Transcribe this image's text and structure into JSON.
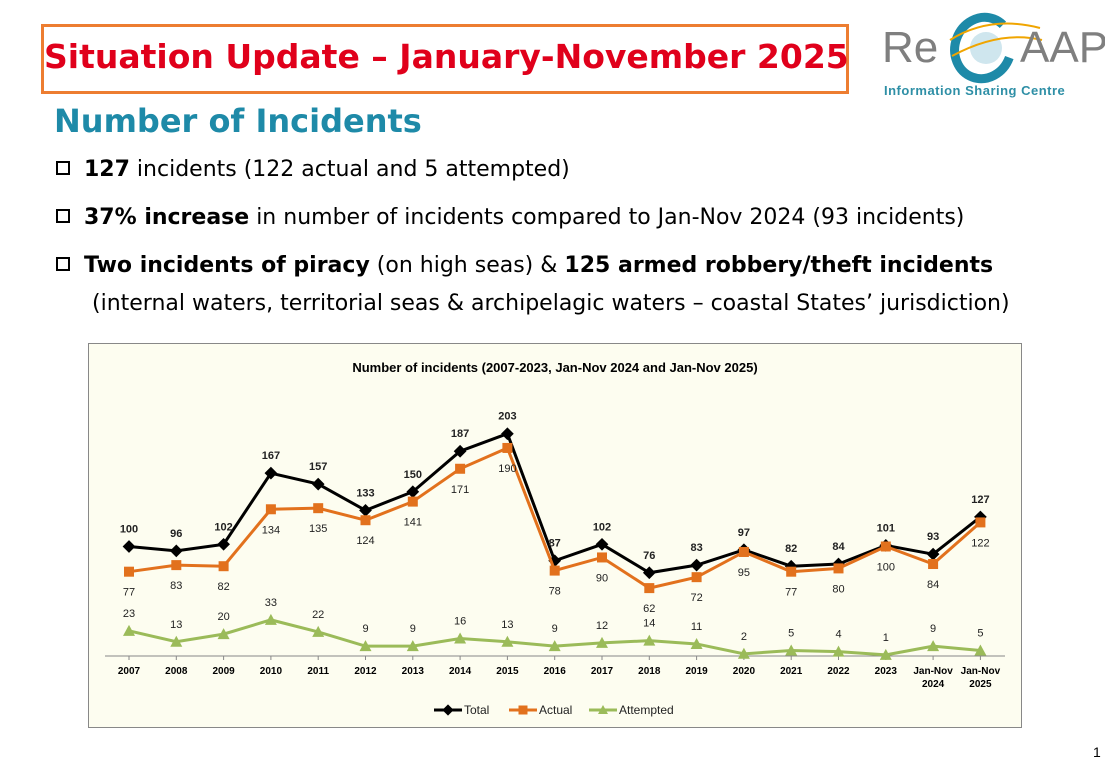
{
  "slide": {
    "title": "Situation Update – January-November 2025",
    "logo_word": "ReCAAP",
    "logo_subtitle": "Information Sharing Centre",
    "heading": "Number of Incidents",
    "bullets": [
      {
        "bold": "127",
        "text": " incidents (122 actual and 5 attempted)"
      },
      {
        "bold": "37% increase",
        "text": " in number of incidents compared to Jan-Nov 2024 (93 incidents)"
      },
      {
        "bold": "Two incidents of piracy",
        "mid": " (on high seas) & ",
        "bold2": "125 armed robbery/theft incidents",
        "line2": "(internal waters, territorial seas & archipelagic waters – coastal States’ jurisdiction)"
      }
    ],
    "page_number": "1"
  },
  "colors": {
    "title_red": "#e0001b",
    "title_border": "#ed7d31",
    "heading_teal": "#1e8aa8",
    "total": "#000000",
    "actual": "#e2711d",
    "attempted": "#9bbb59"
  },
  "chart_data": {
    "type": "line",
    "title": "Number of incidents (2007-2023, Jan-Nov 2024 and Jan-Nov 2025)",
    "categories": [
      "2007",
      "2008",
      "2009",
      "2010",
      "2011",
      "2012",
      "2013",
      "2014",
      "2015",
      "2016",
      "2017",
      "2018",
      "2019",
      "2020",
      "2021",
      "2022",
      "2023",
      "Jan-Nov 2024",
      "Jan-Nov 2025"
    ],
    "series": [
      {
        "name": "Total",
        "values": [
          100,
          96,
          102,
          167,
          157,
          133,
          150,
          187,
          203,
          87,
          102,
          76,
          83,
          97,
          82,
          84,
          101,
          93,
          127
        ]
      },
      {
        "name": "Actual",
        "values": [
          77,
          83,
          82,
          134,
          135,
          124,
          141,
          171,
          190,
          78,
          90,
          62,
          72,
          95,
          77,
          80,
          100,
          84,
          122
        ]
      },
      {
        "name": "Attempted",
        "values": [
          23,
          13,
          20,
          33,
          22,
          9,
          9,
          16,
          13,
          9,
          12,
          14,
          11,
          2,
          5,
          4,
          1,
          9,
          5
        ]
      }
    ],
    "ylim": [
      0,
      220
    ],
    "grid": false,
    "legend": "bottom"
  }
}
